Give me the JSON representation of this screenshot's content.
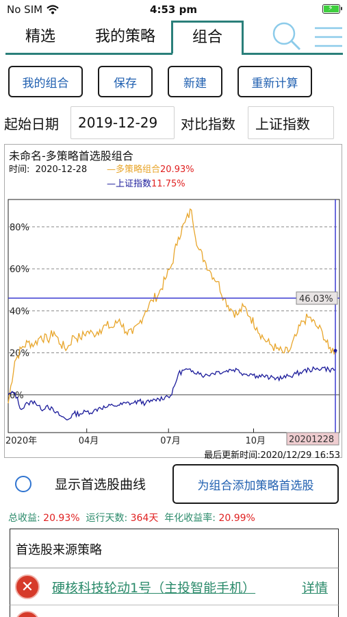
{
  "status": {
    "carrier": "No SIM",
    "time": "4:53 pm"
  },
  "tabs": [
    {
      "label": "精选"
    },
    {
      "label": "我的策略"
    },
    {
      "label": "组合"
    }
  ],
  "actions": {
    "my_combo": "我的组合",
    "save": "保存",
    "new": "新建",
    "recalc": "重新计算"
  },
  "params": {
    "start_label": "起始日期",
    "start_value": "2019-12-29",
    "compare_label": "对比指数",
    "compare_value": "上证指数"
  },
  "chart_header": {
    "title": "未命名-多策略首选股组合",
    "time_label": "时间:",
    "time_value": "2020-12-28",
    "series1_label": "多策略组合",
    "series1_value": "20.93%",
    "series2_label": "上证指数",
    "series2_value": "11.75%",
    "cursor_value": "46.03%",
    "cursor_date": "20201228",
    "update_time": "最后更新时间:2020/12/29 16:53"
  },
  "chart_data": {
    "type": "line",
    "title": "未命名-多策略首选股组合",
    "x_ticks": [
      "2020年",
      "04月",
      "07月",
      "10月"
    ],
    "y_ticks": [
      "0%",
      "20%",
      "40%",
      "60%",
      "80%"
    ],
    "ylim": [
      -18,
      93
    ],
    "xlim": [
      0,
      100
    ],
    "grid": "dashed-horizontal",
    "series": [
      {
        "name": "多策略组合",
        "color": "#e8a52a",
        "x": [
          0,
          2,
          4,
          6,
          8,
          10,
          12,
          14,
          16,
          18,
          20,
          22,
          24,
          26,
          28,
          30,
          32,
          34,
          36,
          38,
          40,
          42,
          44,
          46,
          48,
          50,
          52,
          54,
          56,
          58,
          60,
          62,
          64,
          66,
          68,
          70,
          72,
          74,
          76,
          78,
          80,
          82,
          84,
          86,
          88,
          90,
          92,
          94,
          96,
          98,
          100
        ],
        "values": [
          -4,
          16,
          22,
          25,
          24,
          28,
          26,
          30,
          24,
          22,
          28,
          27,
          30,
          29,
          31,
          33,
          32,
          36,
          30,
          29,
          34,
          40,
          45,
          48,
          55,
          62,
          75,
          82,
          88,
          70,
          64,
          58,
          54,
          46,
          41,
          38,
          42,
          37,
          32,
          27,
          24,
          22,
          20,
          21,
          28,
          35,
          37,
          33,
          30,
          22,
          21
        ]
      },
      {
        "name": "上证指数",
        "color": "#1a1a9a",
        "x": [
          0,
          2,
          4,
          6,
          8,
          10,
          12,
          14,
          16,
          18,
          20,
          22,
          24,
          26,
          28,
          30,
          32,
          34,
          36,
          38,
          40,
          42,
          44,
          46,
          48,
          50,
          52,
          54,
          56,
          58,
          60,
          62,
          64,
          66,
          68,
          70,
          72,
          74,
          76,
          78,
          80,
          82,
          84,
          86,
          88,
          90,
          92,
          94,
          96,
          98,
          100
        ],
        "values": [
          0,
          1,
          -7,
          -4,
          -3,
          -7,
          -5,
          -8,
          -10,
          -12,
          -9,
          -9,
          -8,
          -8,
          -6,
          -6,
          -5,
          -5,
          -4,
          -4,
          -3,
          -4,
          -3,
          -2,
          -1,
          0,
          10,
          12,
          11,
          11,
          9,
          10,
          11,
          11,
          12,
          12,
          10,
          10,
          9,
          9,
          8,
          8,
          8,
          9,
          10,
          11,
          12,
          12,
          13,
          12,
          12
        ]
      }
    ],
    "reference_line": 46.03
  },
  "options": {
    "show_curve": "显示首选股曲线",
    "add_strategy": "为组合添加策略首选股"
  },
  "stats": {
    "total_label": "总收益:",
    "total_value": "20.93%",
    "days_label": "运行天数:",
    "days_value": "364天",
    "annual_label": "年化收益率:",
    "annual_value": "20.99%"
  },
  "sources": {
    "title": "首选股来源策略",
    "items": [
      {
        "name": "硬核科技轮动1号（主投智能手机）",
        "detail": "详情"
      }
    ]
  },
  "colors": {
    "accent": "#2a7f7a",
    "link": "#1f5fb0",
    "gain": "#e02020",
    "stats": "#2a8a6a"
  }
}
